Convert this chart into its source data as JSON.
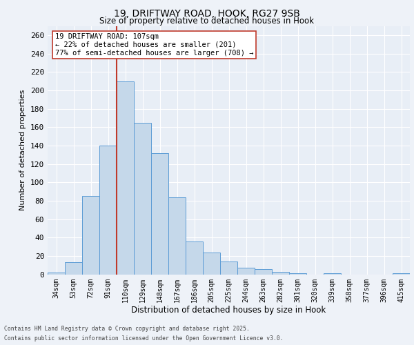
{
  "title_line1": "19, DRIFTWAY ROAD, HOOK, RG27 9SB",
  "title_line2": "Size of property relative to detached houses in Hook",
  "xlabel": "Distribution of detached houses by size in Hook",
  "ylabel": "Number of detached properties",
  "categories": [
    "34sqm",
    "53sqm",
    "72sqm",
    "91sqm",
    "110sqm",
    "129sqm",
    "148sqm",
    "167sqm",
    "186sqm",
    "205sqm",
    "225sqm",
    "244sqm",
    "263sqm",
    "282sqm",
    "301sqm",
    "320sqm",
    "339sqm",
    "358sqm",
    "377sqm",
    "396sqm",
    "415sqm"
  ],
  "values": [
    2,
    13,
    85,
    140,
    210,
    165,
    132,
    84,
    36,
    24,
    14,
    7,
    6,
    3,
    1,
    0,
    1,
    0,
    0,
    0,
    1
  ],
  "bar_color": "#c5d8ea",
  "bar_edge_color": "#5b9bd5",
  "vline_color": "#c0392b",
  "annotation_text": "19 DRIFTWAY ROAD: 107sqm\n← 22% of detached houses are smaller (201)\n77% of semi-detached houses are larger (708) →",
  "annotation_box_color": "white",
  "annotation_box_edge": "#c0392b",
  "ylim": [
    0,
    270
  ],
  "yticks": [
    0,
    20,
    40,
    60,
    80,
    100,
    120,
    140,
    160,
    180,
    200,
    220,
    240,
    260
  ],
  "footer_line1": "Contains HM Land Registry data © Crown copyright and database right 2025.",
  "footer_line2": "Contains public sector information licensed under the Open Government Licence v3.0.",
  "bg_color": "#eef2f8",
  "plot_bg_color": "#e8eef6"
}
